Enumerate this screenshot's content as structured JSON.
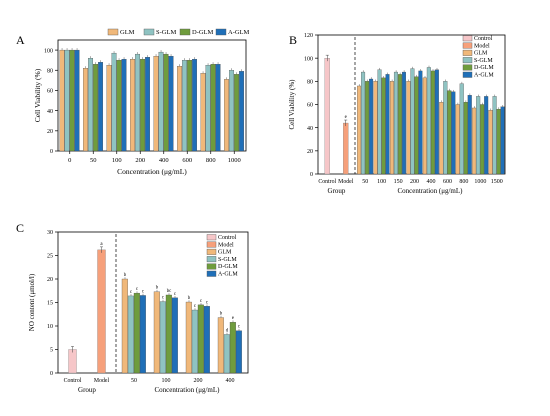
{
  "colors": {
    "Control": "#f6c6c8",
    "Model": "#f6a07b",
    "GLM": "#f0b87a",
    "S-GLM": "#8fc3c2",
    "D-GLM": "#6f9c3d",
    "A-GLM": "#1f6fb8"
  },
  "chart_data": [
    {
      "panel_label": "A",
      "type": "bar",
      "xlabel": "Concentration (μg/mL)",
      "ylabel": "Cell Viability (%)",
      "ylim": [
        0,
        110
      ],
      "yticks": [
        "0",
        "20",
        "40",
        "60",
        "80",
        "100"
      ],
      "legend_position": "top",
      "categories": [
        "0",
        "50",
        "100",
        "200",
        "400",
        "600",
        "800",
        "1000"
      ],
      "series": [
        {
          "name": "GLM",
          "values": [
            100,
            82,
            85,
            91,
            94,
            84,
            77,
            71
          ]
        },
        {
          "name": "S-GLM",
          "values": [
            100,
            92,
            97,
            96,
            98,
            90,
            85,
            80
          ]
        },
        {
          "name": "D-GLM",
          "values": [
            100,
            86,
            90,
            91,
            96,
            90,
            86,
            76
          ]
        },
        {
          "name": "A-GLM",
          "values": [
            100,
            88,
            91,
            93,
            94,
            91,
            86,
            79
          ]
        }
      ]
    },
    {
      "panel_label": "B",
      "type": "bar",
      "xlabel": "Concentration (μg/mL)",
      "group_label": "Group",
      "ylabel": "Cell Viability (%)",
      "ylim": [
        0,
        120
      ],
      "yticks": [
        "0",
        "20",
        "40",
        "60",
        "80",
        "100",
        "120"
      ],
      "legend_position": "top-right",
      "group_categories": [
        "Control",
        "Model"
      ],
      "group_series": [
        {
          "name": "Control",
          "values": [
            100,
            null
          ]
        },
        {
          "name": "Model",
          "values": [
            null,
            44
          ]
        }
      ],
      "group_letters": [
        "",
        "e"
      ],
      "categories": [
        "50",
        "100",
        "150",
        "200",
        "400",
        "600",
        "800",
        "1000",
        "1500"
      ],
      "series": [
        {
          "name": "GLM",
          "values": [
            76,
            80,
            80,
            80,
            83,
            62,
            60,
            57,
            55
          ]
        },
        {
          "name": "S-GLM",
          "values": [
            88,
            90,
            88,
            91,
            92,
            80,
            78,
            67,
            67
          ]
        },
        {
          "name": "D-GLM",
          "values": [
            80,
            83,
            86,
            84,
            89,
            72,
            62,
            60,
            56
          ]
        },
        {
          "name": "A-GLM",
          "values": [
            82,
            86,
            88,
            89,
            90,
            71,
            68,
            67,
            58
          ]
        }
      ]
    },
    {
      "panel_label": "C",
      "type": "bar",
      "xlabel": "Concentration (μg/mL)",
      "group_label": "Group",
      "ylabel": "NO content (μmol/l)",
      "ylim": [
        0,
        30
      ],
      "yticks": [
        "0",
        "5",
        "10",
        "15",
        "20",
        "25",
        "30"
      ],
      "legend_position": "top-right",
      "group_categories": [
        "Control",
        "Model"
      ],
      "group_series": [
        {
          "name": "Control",
          "values": [
            5.0,
            null
          ]
        },
        {
          "name": "Model",
          "values": [
            null,
            26.2
          ]
        }
      ],
      "group_letters": [
        "",
        "a"
      ],
      "categories": [
        "50",
        "100",
        "200",
        "400"
      ],
      "series": [
        {
          "name": "GLM",
          "values": [
            20.0,
            17.3,
            15.1,
            11.8
          ]
        },
        {
          "name": "S-GLM",
          "values": [
            16.4,
            15.2,
            13.4,
            8.2
          ]
        },
        {
          "name": "D-GLM",
          "values": [
            17.0,
            16.6,
            14.5,
            10.8
          ]
        },
        {
          "name": "A-GLM",
          "values": [
            16.5,
            16.0,
            14.2,
            9.0
          ]
        }
      ],
      "letters": [
        [
          "b",
          "c",
          "c",
          "c"
        ],
        [
          "b",
          "c",
          "bc",
          "c"
        ],
        [
          "b",
          "c",
          "c",
          "c"
        ],
        [
          "b",
          "d",
          "e",
          "c"
        ]
      ]
    }
  ]
}
